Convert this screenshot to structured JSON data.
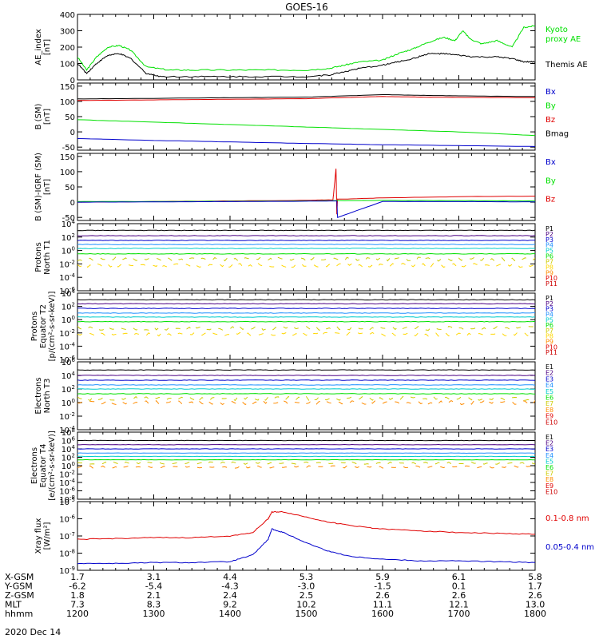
{
  "title": "GOES-16",
  "footer_date": "2020 Dec 14",
  "colors": {
    "black": "#000000",
    "red": "#e00000",
    "green": "#00e000",
    "blue": "#0000cc"
  },
  "chart_data": [
    {
      "id": "ae",
      "type": "line",
      "ylabel": [
        "AE_index",
        "[nT]"
      ],
      "ylim": [
        0,
        400
      ],
      "yscale": "linear",
      "yticks": [
        "0",
        "100",
        "200",
        "300",
        "400"
      ],
      "legend": [
        {
          "label": "Kyoto",
          "color": "#00e000"
        },
        {
          "label": "proxy AE",
          "color": "#00e000"
        },
        {
          "label": "Themis AE",
          "color": "#000000"
        }
      ],
      "series": [
        {
          "name": "Kyoto proxy AE",
          "color": "#00e000",
          "x": [
            12.0,
            12.12,
            12.25,
            12.4,
            12.55,
            12.7,
            12.9,
            13.2,
            13.5,
            14.0,
            14.5,
            15.0,
            15.3,
            15.5,
            15.7,
            16.0,
            16.2,
            16.4,
            16.6,
            16.8,
            16.95,
            17.05,
            17.15,
            17.3,
            17.5,
            17.7,
            17.85,
            18.0
          ],
          "values": [
            140,
            60,
            140,
            200,
            210,
            180,
            80,
            60,
            60,
            60,
            60,
            60,
            70,
            90,
            110,
            120,
            160,
            190,
            230,
            260,
            240,
            300,
            250,
            220,
            240,
            200,
            320,
            330
          ]
        },
        {
          "name": "Themis AE",
          "color": "#000000",
          "x": [
            12.0,
            12.12,
            12.25,
            12.4,
            12.55,
            12.7,
            12.9,
            13.1,
            13.5,
            14.0,
            14.5,
            15.0,
            15.3,
            15.5,
            15.7,
            16.0,
            16.2,
            16.4,
            16.6,
            16.8,
            17.0,
            17.2,
            17.5,
            17.7,
            17.85,
            18.0
          ],
          "values": [
            100,
            40,
            100,
            150,
            160,
            130,
            40,
            20,
            20,
            20,
            20,
            20,
            30,
            50,
            70,
            90,
            110,
            130,
            160,
            160,
            150,
            140,
            140,
            130,
            110,
            110
          ]
        }
      ]
    },
    {
      "id": "bsm",
      "type": "line",
      "ylabel": [
        "B (SM)",
        "[nT]"
      ],
      "ylim": [
        -60,
        160
      ],
      "yscale": "linear",
      "yticks": [
        "-50",
        "0",
        "50",
        "100",
        "150"
      ],
      "legend": [
        {
          "label": "Bx",
          "color": "#0000cc"
        },
        {
          "label": "By",
          "color": "#00e000"
        },
        {
          "label": "Bz",
          "color": "#e00000"
        },
        {
          "label": "Bmag",
          "color": "#000000"
        }
      ],
      "series": [
        {
          "name": "Bmag",
          "color": "#000000",
          "x": [
            12.0,
            13.0,
            14.0,
            15.0,
            16.0,
            16.5,
            17.0,
            18.0
          ],
          "values": [
            108,
            110,
            112,
            114,
            122,
            120,
            118,
            116
          ]
        },
        {
          "name": "Bz",
          "color": "#e00000",
          "x": [
            12.0,
            13.0,
            14.0,
            15.0,
            16.0,
            16.5,
            17.0,
            18.0
          ],
          "values": [
            103,
            105,
            107,
            109,
            116,
            114,
            113,
            112
          ]
        },
        {
          "name": "By",
          "color": "#00e000",
          "x": [
            12.0,
            13.0,
            14.0,
            15.0,
            16.0,
            17.0,
            18.0
          ],
          "values": [
            40,
            32,
            24,
            16,
            8,
            0,
            -12
          ]
        },
        {
          "name": "Bx",
          "color": "#0000cc",
          "x": [
            12.0,
            13.0,
            14.0,
            15.0,
            16.0,
            17.0,
            18.0
          ],
          "values": [
            -22,
            -28,
            -33,
            -38,
            -42,
            -45,
            -48
          ]
        }
      ]
    },
    {
      "id": "bigrf",
      "type": "line",
      "ylabel": [
        "B (SM)-IGRF (SM)",
        "[nT]"
      ],
      "ylim": [
        -60,
        160
      ],
      "yscale": "linear",
      "yticks": [
        "-50",
        "0",
        "50",
        "100",
        "150"
      ],
      "legend": [
        {
          "label": "Bx",
          "color": "#0000cc"
        },
        {
          "label": "By",
          "color": "#00e000"
        },
        {
          "label": "Bz",
          "color": "#e00000"
        }
      ],
      "series": [
        {
          "name": "Bz",
          "color": "#e00000",
          "x": [
            12.0,
            13.0,
            14.0,
            15.0,
            15.35,
            15.39,
            15.4,
            15.41,
            15.5,
            16.0,
            17.0,
            18.0
          ],
          "values": [
            0,
            2,
            4,
            6,
            8,
            110,
            -40,
            10,
            10,
            14,
            18,
            20
          ]
        },
        {
          "name": "By",
          "color": "#00e000",
          "x": [
            12.0,
            13.0,
            14.0,
            15.0,
            15.4,
            16.0,
            17.0,
            18.0
          ],
          "values": [
            2,
            2,
            3,
            4,
            5,
            6,
            5,
            4
          ]
        },
        {
          "name": "Bx",
          "color": "#0000cc",
          "x": [
            12.0,
            13.0,
            14.0,
            15.0,
            15.4,
            15.41,
            16.0,
            17.0,
            18.0
          ],
          "values": [
            0,
            1,
            2,
            3,
            4,
            -50,
            2,
            2,
            1
          ]
        }
      ]
    },
    {
      "id": "pn",
      "type": "line",
      "ylabel": [
        "Protons",
        "North T1"
      ],
      "yscale": "log",
      "ylim": [
        -6,
        4
      ],
      "yticks": [
        "10^-6",
        "10^-4",
        "10^-2",
        "10^0",
        "10^2",
        "10^4"
      ],
      "legend": [
        {
          "label": "P1",
          "color": "#000000"
        },
        {
          "label": "P2",
          "color": "#4b0082"
        },
        {
          "label": "P3",
          "color": "#0000cc"
        },
        {
          "label": "P4",
          "color": "#1e90ff"
        },
        {
          "label": "P5",
          "color": "#00cccc"
        },
        {
          "label": "P6",
          "color": "#00e000"
        },
        {
          "label": "P7",
          "color": "#cccc00"
        },
        {
          "label": "P8",
          "color": "#ffd700"
        },
        {
          "label": "P9",
          "color": "#ff8c00"
        },
        {
          "label": "P10",
          "color": "#e00000"
        },
        {
          "label": "P11",
          "color": "#cc0000"
        }
      ],
      "levels": [
        3.0,
        2.2,
        1.5,
        0.9,
        0.3,
        -0.5,
        -1.3,
        -2.2
      ]
    },
    {
      "id": "pe",
      "type": "line",
      "ylabel": [
        "Protons",
        "Equator T2",
        "[p/(cm²-s-sr-keV)]"
      ],
      "yscale": "log",
      "ylim": [
        -6,
        4
      ],
      "yticks": [
        "10^-6",
        "10^-4",
        "10^-2",
        "10^0",
        "10^2",
        "10^4"
      ],
      "legend": [
        {
          "label": "P1",
          "color": "#000000"
        },
        {
          "label": "P2",
          "color": "#4b0082"
        },
        {
          "label": "P3",
          "color": "#0000cc"
        },
        {
          "label": "P4",
          "color": "#1e90ff"
        },
        {
          "label": "P5",
          "color": "#00cccc"
        },
        {
          "label": "P6",
          "color": "#00e000"
        },
        {
          "label": "P7",
          "color": "#cccc00"
        },
        {
          "label": "P8",
          "color": "#ffd700"
        },
        {
          "label": "P9",
          "color": "#ff8c00"
        },
        {
          "label": "P10",
          "color": "#e00000"
        },
        {
          "label": "P11",
          "color": "#cc0000"
        }
      ],
      "levels": [
        3.0,
        2.4,
        1.7,
        1.0,
        0.4,
        -0.3,
        -1.3,
        -2.2
      ]
    },
    {
      "id": "en",
      "type": "line",
      "ylabel": [
        "Electrons",
        "North T3"
      ],
      "yscale": "log",
      "ylim": [
        -4,
        6
      ],
      "yticks": [
        "10^-4",
        "10^-2",
        "10^0",
        "10^2",
        "10^4",
        "10^6"
      ],
      "legend": [
        {
          "label": "E1",
          "color": "#000000"
        },
        {
          "label": "E2",
          "color": "#4b0082"
        },
        {
          "label": "E3",
          "color": "#0000cc"
        },
        {
          "label": "E4",
          "color": "#1e90ff"
        },
        {
          "label": "E5",
          "color": "#00cccc"
        },
        {
          "label": "E6",
          "color": "#00e000"
        },
        {
          "label": "E7",
          "color": "#cccc00"
        },
        {
          "label": "E8",
          "color": "#ff8c00"
        },
        {
          "label": "E9",
          "color": "#e00000"
        },
        {
          "label": "E10",
          "color": "#cc0000"
        }
      ],
      "levels": [
        4.8,
        4.0,
        3.3,
        2.6,
        2.0,
        1.3,
        0.6,
        0.0
      ]
    },
    {
      "id": "ee",
      "type": "line",
      "ylabel": [
        "Electrons",
        "Equator T4",
        "[e/(cm²-s-sr-keV)]"
      ],
      "yscale": "log",
      "ylim": [
        -8,
        8
      ],
      "yticks": [
        "10^-8",
        "10^-6",
        "10^-4",
        "10^-2",
        "10^0",
        "10^2",
        "10^4",
        "10^6",
        "10^8"
      ],
      "legend": [
        {
          "label": "E1",
          "color": "#000000"
        },
        {
          "label": "E2",
          "color": "#4b0082"
        },
        {
          "label": "E3",
          "color": "#0000cc"
        },
        {
          "label": "E4",
          "color": "#1e90ff"
        },
        {
          "label": "E5",
          "color": "#00cccc"
        },
        {
          "label": "E6",
          "color": "#00e000"
        },
        {
          "label": "E7",
          "color": "#cccc00"
        },
        {
          "label": "E8",
          "color": "#ff8c00"
        },
        {
          "label": "E9",
          "color": "#e00000"
        },
        {
          "label": "E10",
          "color": "#cc0000"
        }
      ],
      "levels": [
        6.0,
        5.0,
        4.0,
        3.0,
        2.2,
        1.4,
        0.6,
        -0.3
      ]
    },
    {
      "id": "xray",
      "type": "line",
      "ylabel": [
        "Xray flux",
        "[W/m²]"
      ],
      "yscale": "log",
      "ylim": [
        -9,
        -5
      ],
      "yticks": [
        "10^-9",
        "10^-8",
        "10^-7",
        "10^-6",
        "10^-5"
      ],
      "legend": [
        {
          "label": "0.1-0.8 nm",
          "color": "#e00000"
        },
        {
          "label": "0.05-0.4 nm",
          "color": "#0000cc"
        }
      ],
      "series": [
        {
          "name": "0.1-0.8 nm",
          "color": "#e00000",
          "x": [
            12.0,
            12.5,
            13.0,
            13.5,
            14.0,
            14.3,
            14.5,
            14.55,
            14.7,
            15.0,
            15.3,
            15.6,
            16.0,
            16.5,
            17.0,
            17.5,
            18.0
          ],
          "values": [
            -7.2,
            -7.15,
            -7.1,
            -7.1,
            -7.0,
            -6.8,
            -6.0,
            -5.6,
            -5.6,
            -5.9,
            -6.2,
            -6.4,
            -6.6,
            -6.7,
            -6.8,
            -6.85,
            -6.9
          ]
        },
        {
          "name": "0.05-0.4 nm",
          "color": "#0000cc",
          "x": [
            12.0,
            12.5,
            13.0,
            13.5,
            14.0,
            14.3,
            14.5,
            14.55,
            14.7,
            15.0,
            15.3,
            15.6,
            16.0,
            16.5,
            17.0,
            17.5,
            18.0
          ],
          "values": [
            -8.6,
            -8.6,
            -8.55,
            -8.55,
            -8.5,
            -8.1,
            -7.2,
            -6.6,
            -6.8,
            -7.4,
            -7.9,
            -8.2,
            -8.35,
            -8.45,
            -8.45,
            -8.5,
            -8.55
          ]
        }
      ]
    }
  ],
  "xaxis": {
    "rows": [
      {
        "label": "X-GSM",
        "values": [
          "1.7",
          "3.1",
          "4.4",
          "5.3",
          "5.9",
          "6.1",
          "5.8"
        ]
      },
      {
        "label": "Y-GSM",
        "values": [
          "-6.2",
          "-5.4",
          "-4.3",
          "-3.0",
          "-1.5",
          "0.1",
          "1.7"
        ]
      },
      {
        "label": "Z-GSM",
        "values": [
          "1.8",
          "2.1",
          "2.4",
          "2.5",
          "2.6",
          "2.6",
          "2.6"
        ]
      },
      {
        "label": "MLT",
        "values": [
          "7.3",
          "8.3",
          "9.2",
          "10.2",
          "11.1",
          "12.1",
          "13.0"
        ]
      },
      {
        "label": "hhmm",
        "values": [
          "1200",
          "1300",
          "1400",
          "1500",
          "1600",
          "1700",
          "1800"
        ]
      }
    ],
    "x": [
      12,
      13,
      14,
      15,
      16,
      17,
      18
    ]
  }
}
